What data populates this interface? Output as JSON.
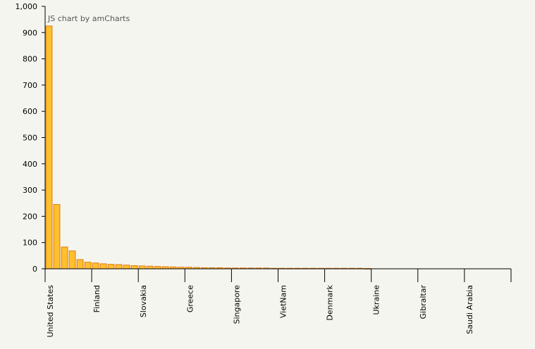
{
  "chart_data": {
    "type": "bar",
    "watermark": "JS chart by amCharts",
    "ylim": [
      0,
      1000
    ],
    "yticks": [
      0,
      100,
      200,
      300,
      400,
      500,
      600,
      700,
      800,
      900,
      1000
    ],
    "ytick_labels": [
      "0",
      "100",
      "200",
      "300",
      "400",
      "500",
      "600",
      "700",
      "800",
      "900",
      "1,000"
    ],
    "category_count": 60,
    "labeled_categories": [
      {
        "index": 0,
        "label": "United States"
      },
      {
        "index": 6,
        "label": "Finland"
      },
      {
        "index": 12,
        "label": "Slovakia"
      },
      {
        "index": 18,
        "label": "Greece"
      },
      {
        "index": 24,
        "label": "Singapore"
      },
      {
        "index": 30,
        "label": "VietNam"
      },
      {
        "index": 36,
        "label": "Denmark"
      },
      {
        "index": 42,
        "label": "Ukraine"
      },
      {
        "index": 48,
        "label": "Gibraltar"
      },
      {
        "index": 54,
        "label": "Saudi Arabia"
      }
    ],
    "values": [
      925,
      245,
      83,
      68,
      35,
      25,
      22,
      19,
      17,
      16,
      14,
      12,
      11,
      10,
      9,
      8,
      7,
      6,
      6,
      5,
      4,
      4,
      4,
      3,
      3,
      3,
      3,
      3,
      3,
      2,
      2,
      2,
      2,
      2,
      2,
      2,
      2,
      2,
      2,
      2,
      2,
      1,
      0,
      0,
      0,
      0,
      0,
      0,
      0,
      0,
      0,
      0,
      0,
      0,
      0,
      0,
      0,
      0,
      0,
      0
    ],
    "colors": {
      "bar_fill": "#ffc02e",
      "bar_stroke": "#e07a10",
      "axis": "#000000",
      "tick_text": "#000000",
      "watermark": "#555555",
      "background": "#f5f5f0"
    },
    "grid": false
  }
}
